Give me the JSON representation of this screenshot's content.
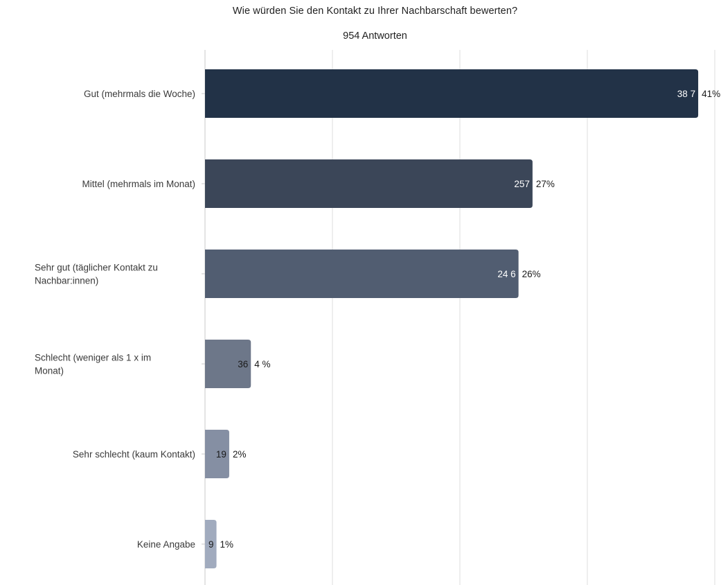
{
  "chart_data": {
    "type": "bar",
    "orientation": "horizontal",
    "title": "Wie würden Sie den Kontakt zu Ihrer Nachbarschaft bewerten?",
    "subtitle": "954 Antworten",
    "categories": [
      "Gut (mehrmals die Woche)",
      "Mittel (mehrmals im Monat)",
      "Sehr gut (täglicher Kontakt zu Nachbar:innen)",
      "Schlecht (weniger als 1 x im Monat)",
      "Sehr schlecht (kaum Kontakt)",
      "Keine Angabe"
    ],
    "values": [
      387,
      257,
      246,
      36,
      19,
      9
    ],
    "value_labels": [
      "38 7",
      "257",
      "24 6",
      "36",
      "19",
      "9"
    ],
    "percent_labels": [
      "41%",
      "27%",
      "26%",
      "4 %",
      "2%",
      "1%"
    ],
    "colors": [
      "#223247",
      "#3b4658",
      "#515d71",
      "#6d7789",
      "#858fa3",
      "#a1abbe"
    ],
    "value_label_colors": [
      "#ffffff",
      "#ffffff",
      "#ffffff",
      "#1a1a1a",
      "#1a1a1a",
      "#1a1a1a"
    ],
    "xlim": [
      0,
      400
    ],
    "grid": true,
    "axis_tick_labels": false,
    "legend": false
  }
}
